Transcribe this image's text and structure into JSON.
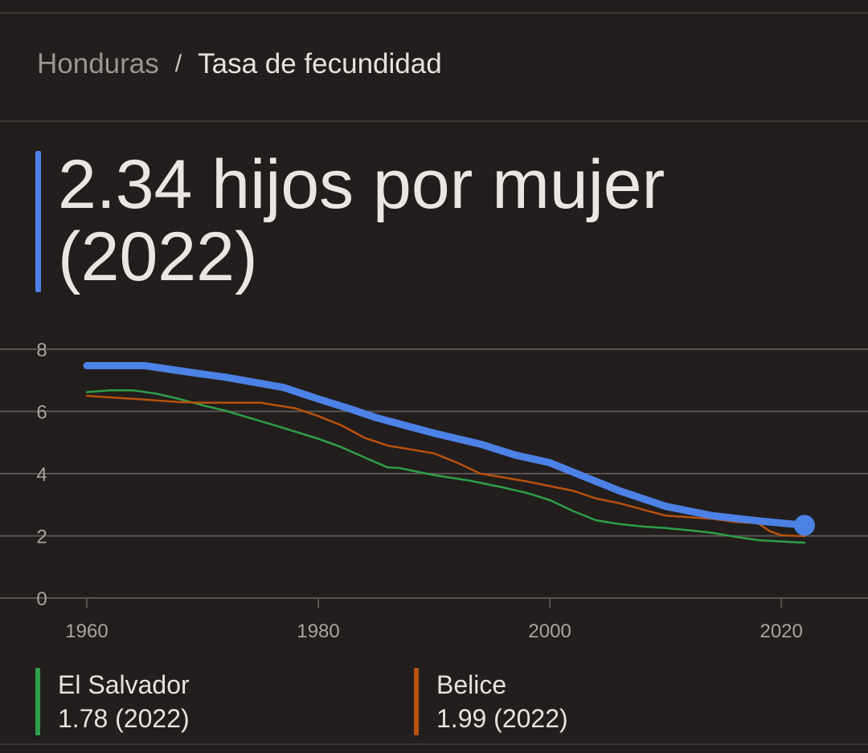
{
  "breadcrumb": {
    "parent": "Honduras",
    "separator": "/",
    "current": "Tasa de fecundidad"
  },
  "headline": "2.34 hijos por mujer (2022)",
  "colors": {
    "honduras": "#4c82e6",
    "el_salvador": "#2f9e4a",
    "belice": "#b8520f",
    "grid": "#5a5452"
  },
  "legend": [
    {
      "name": "El Salvador",
      "value": "1.78 (2022)",
      "color": "#2f9e4a"
    },
    {
      "name": "Belice",
      "value": "1.99 (2022)",
      "color": "#b8520f"
    }
  ],
  "chart_data": {
    "type": "line",
    "xlim": [
      1960,
      2022
    ],
    "ylim": [
      0,
      8
    ],
    "x_ticks": [
      1960,
      1980,
      2000,
      2020
    ],
    "y_ticks": [
      0,
      2,
      4,
      6,
      8
    ],
    "grid": true,
    "series": [
      {
        "name": "Honduras",
        "color": "#4c82e6",
        "x": [
          1960,
          1965,
          1970,
          1972,
          1975,
          1977,
          1980,
          1983,
          1985,
          1988,
          1990,
          1994,
          1997,
          2000,
          2003,
          2006,
          2010,
          2014,
          2018,
          2022
        ],
        "y": [
          7.47,
          7.47,
          7.2,
          7.1,
          6.9,
          6.77,
          6.4,
          6.05,
          5.8,
          5.5,
          5.3,
          4.95,
          4.6,
          4.35,
          3.9,
          3.45,
          2.95,
          2.65,
          2.48,
          2.34
        ]
      },
      {
        "name": "El Salvador",
        "color": "#2f9e4a",
        "x": [
          1960,
          1962,
          1964,
          1966,
          1968,
          1970,
          1972,
          1974,
          1976,
          1978,
          1980,
          1982,
          1984,
          1986,
          1987,
          1990,
          1993,
          1996,
          1998,
          2000,
          2002,
          2004,
          2006,
          2008,
          2010,
          2012,
          2014,
          2016,
          2018,
          2020,
          2022
        ],
        "y": [
          6.62,
          6.68,
          6.68,
          6.57,
          6.4,
          6.2,
          6.02,
          5.8,
          5.58,
          5.35,
          5.12,
          4.85,
          4.52,
          4.2,
          4.18,
          3.95,
          3.78,
          3.55,
          3.38,
          3.15,
          2.8,
          2.5,
          2.38,
          2.3,
          2.25,
          2.18,
          2.1,
          1.97,
          1.86,
          1.82,
          1.78
        ]
      },
      {
        "name": "Belice",
        "color": "#b8520f",
        "x": [
          1960,
          1965,
          1968,
          1970,
          1975,
          1978,
          1980,
          1982,
          1984,
          1986,
          1988,
          1990,
          1992,
          1994,
          1996,
          1998,
          2000,
          2002,
          2004,
          2006,
          2008,
          2010,
          2012,
          2014,
          2016,
          2018,
          2019,
          2020,
          2022
        ],
        "y": [
          6.5,
          6.38,
          6.3,
          6.28,
          6.28,
          6.1,
          5.85,
          5.55,
          5.15,
          4.9,
          4.78,
          4.65,
          4.35,
          4.0,
          3.88,
          3.75,
          3.6,
          3.45,
          3.2,
          3.05,
          2.85,
          2.65,
          2.6,
          2.55,
          2.45,
          2.4,
          2.15,
          2.02,
          1.99
        ]
      }
    ]
  }
}
